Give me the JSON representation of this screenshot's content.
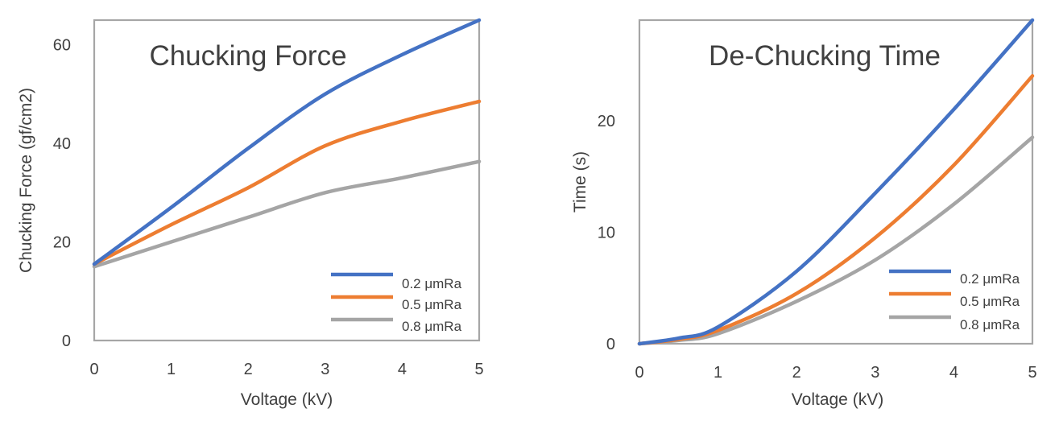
{
  "chart_data": [
    {
      "type": "line",
      "title": "Chucking Force",
      "xlabel": "Voltage (kV)",
      "ylabel": "Chucking Force (gf/cm2)",
      "xlim": [
        0,
        5
      ],
      "ylim": [
        0,
        65
      ],
      "x_ticks": [
        "0",
        "1",
        "2",
        "3",
        "4",
        "5"
      ],
      "y_ticks": [
        "0",
        "20",
        "40",
        "60"
      ],
      "grid": false,
      "legend_position": "bottom-right",
      "series": [
        {
          "name": "0.2 μmRa",
          "color": "#4472c4",
          "points": [
            [
              0,
              15.5
            ],
            [
              1,
              27
            ],
            [
              2,
              39
            ],
            [
              3,
              50
            ],
            [
              4,
              58
            ],
            [
              5,
              65
            ]
          ]
        },
        {
          "name": "0.5 μmRa",
          "color": "#ed7d31",
          "points": [
            [
              0,
              15.5
            ],
            [
              1,
              23.5
            ],
            [
              2,
              31
            ],
            [
              3,
              39.5
            ],
            [
              4,
              44.5
            ],
            [
              5,
              48.5
            ]
          ]
        },
        {
          "name": "0.8 μmRa",
          "color": "#a5a5a5",
          "points": [
            [
              0,
              15
            ],
            [
              1,
              20
            ],
            [
              2,
              25
            ],
            [
              3,
              30
            ],
            [
              4,
              33
            ],
            [
              5,
              36.3
            ]
          ]
        }
      ]
    },
    {
      "type": "line",
      "title": "De-Chucking Time",
      "xlabel": "Voltage (kV)",
      "ylabel": "Time (s)",
      "xlim": [
        0,
        5
      ],
      "ylim": [
        0,
        29
      ],
      "x_ticks": [
        "0",
        "1",
        "2",
        "3",
        "4",
        "5"
      ],
      "y_ticks": [
        "0",
        "10",
        "20"
      ],
      "grid": false,
      "legend_position": "bottom-right",
      "series": [
        {
          "name": "0.2 μmRa",
          "color": "#4472c4",
          "points": [
            [
              0,
              0
            ],
            [
              0.5,
              0.5
            ],
            [
              1,
              1.5
            ],
            [
              2,
              6.5
            ],
            [
              3,
              13.5
            ],
            [
              4,
              21
            ],
            [
              5,
              29
            ]
          ]
        },
        {
          "name": "0.5 μmRa",
          "color": "#ed7d31",
          "points": [
            [
              0,
              0
            ],
            [
              0.5,
              0.4
            ],
            [
              1,
              1.2
            ],
            [
              2,
              4.5
            ],
            [
              3,
              9.5
            ],
            [
              4,
              16
            ],
            [
              5,
              24
            ]
          ]
        },
        {
          "name": "0.8 μmRa",
          "color": "#a5a5a5",
          "points": [
            [
              0,
              0
            ],
            [
              0.5,
              0.3
            ],
            [
              1,
              0.9
            ],
            [
              2,
              3.8
            ],
            [
              3,
              7.5
            ],
            [
              4,
              12.5
            ],
            [
              5,
              18.5
            ]
          ]
        }
      ]
    }
  ]
}
